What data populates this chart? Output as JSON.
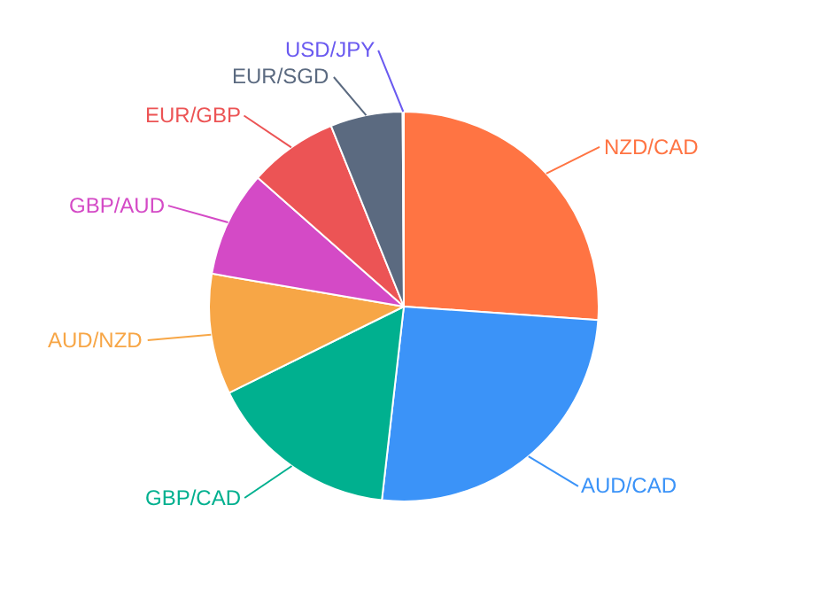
{
  "chart_data": {
    "type": "pie",
    "categories": [
      "NZD/CAD",
      "AUD/CAD",
      "GBP/CAD",
      "AUD/NZD",
      "GBP/AUD",
      "EUR/GBP",
      "EUR/SGD",
      "USD/JPY"
    ],
    "values": [
      26.1,
      25.7,
      15.9,
      10,
      8.8,
      7.4,
      6,
      0.1
    ],
    "colors": [
      "#ff7443",
      "#3b93f8",
      "#00b08f",
      "#f7a646",
      "#d44ac6",
      "#ec5455",
      "#5b6a80",
      "#6a5af0"
    ]
  }
}
